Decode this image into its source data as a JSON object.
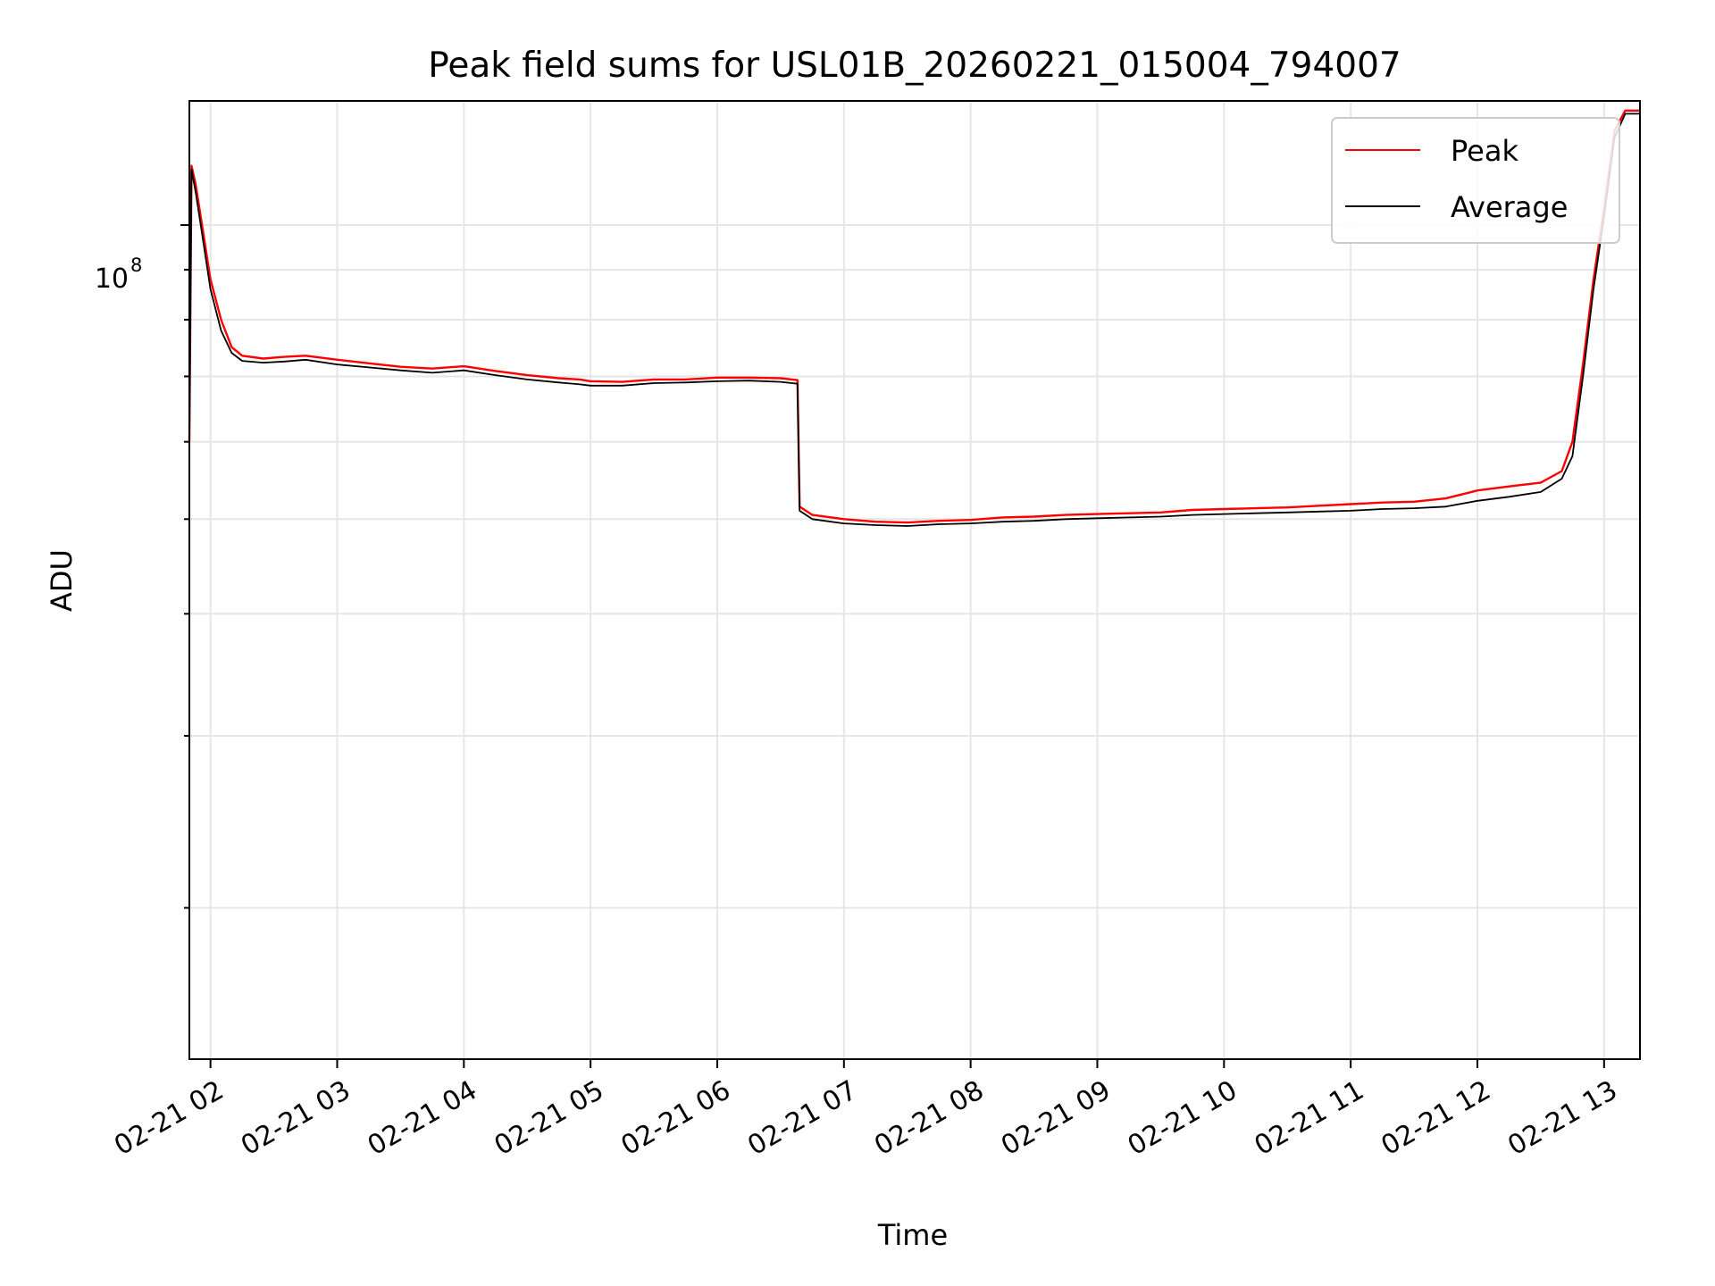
{
  "chart_data": {
    "type": "line",
    "title": "Peak field sums for USL01B_20260221_015004_794007",
    "xlabel": "Time",
    "ylabel": "ADU",
    "xscale": "time",
    "yscale": "log",
    "x_ticks": [
      "02-21 02",
      "02-21 03",
      "02-21 04",
      "02-21 05",
      "02-21 06",
      "02-21 07",
      "02-21 08",
      "02-21 09",
      "02-21 10",
      "02-21 11",
      "02-21 12",
      "02-21 13"
    ],
    "y_tick_label": "10^8",
    "xlim": [
      "2026-02-21 01:50",
      "2026-02-21 13:17"
    ],
    "ylim": [
      14000000,
      134000000
    ],
    "grid": true,
    "legend_position": "top-right",
    "series": [
      {
        "name": "Peak",
        "color": "#ff0000",
        "x": [
          "01:50",
          "01:51",
          "01:53",
          "01:56",
          "02:00",
          "02:05",
          "02:10",
          "02:15",
          "02:25",
          "02:35",
          "02:45",
          "03:00",
          "03:15",
          "03:30",
          "03:45",
          "04:00",
          "04:15",
          "04:30",
          "04:45",
          "04:55",
          "05:00",
          "05:15",
          "05:30",
          "05:45",
          "06:00",
          "06:15",
          "06:30",
          "06:38",
          "06:39",
          "06:45",
          "07:00",
          "07:15",
          "07:30",
          "07:45",
          "08:00",
          "08:15",
          "08:30",
          "08:45",
          "09:00",
          "09:15",
          "09:30",
          "09:45",
          "10:00",
          "10:15",
          "10:30",
          "10:45",
          "11:00",
          "11:15",
          "11:30",
          "11:45",
          "12:00",
          "12:15",
          "12:30",
          "12:40",
          "12:45",
          "12:50",
          "12:55",
          "13:00",
          "13:05",
          "13:10",
          "13:15",
          "13:17"
        ],
        "values": [
          60000000,
          115000000,
          110000000,
          100000000,
          88000000,
          80000000,
          75000000,
          73500000,
          73000000,
          73300000,
          73500000,
          72800000,
          72200000,
          71600000,
          71300000,
          71700000,
          70900000,
          70200000,
          69700000,
          69500000,
          69200000,
          69100000,
          69500000,
          69500000,
          69800000,
          69800000,
          69700000,
          69400000,
          51500000,
          50500000,
          50000000,
          49700000,
          49600000,
          49800000,
          49900000,
          50200000,
          50300000,
          50500000,
          50600000,
          50700000,
          50800000,
          51100000,
          51200000,
          51300000,
          51400000,
          51600000,
          51800000,
          52000000,
          52100000,
          52500000,
          53500000,
          54000000,
          54500000,
          56000000,
          60000000,
          72000000,
          88000000,
          104000000,
          125000000,
          131000000,
          131000000,
          131000000
        ]
      },
      {
        "name": "Average",
        "color": "#000000",
        "x": [
          "01:50",
          "01:51",
          "01:53",
          "01:56",
          "02:00",
          "02:05",
          "02:10",
          "02:15",
          "02:25",
          "02:35",
          "02:45",
          "03:00",
          "03:15",
          "03:30",
          "03:45",
          "04:00",
          "04:15",
          "04:30",
          "04:45",
          "04:55",
          "05:00",
          "05:15",
          "05:30",
          "05:45",
          "06:00",
          "06:15",
          "06:30",
          "06:38",
          "06:39",
          "06:45",
          "07:00",
          "07:15",
          "07:30",
          "07:45",
          "08:00",
          "08:15",
          "08:30",
          "08:45",
          "09:00",
          "09:15",
          "09:30",
          "09:45",
          "10:00",
          "10:15",
          "10:30",
          "10:45",
          "11:00",
          "11:15",
          "11:30",
          "11:45",
          "12:00",
          "12:15",
          "12:30",
          "12:40",
          "12:45",
          "12:50",
          "12:55",
          "13:00",
          "13:05",
          "13:10",
          "13:15",
          "13:17"
        ],
        "values": [
          60000000,
          114000000,
          108000000,
          98000000,
          86000000,
          78000000,
          74000000,
          72600000,
          72300000,
          72500000,
          72800000,
          72000000,
          71500000,
          71000000,
          70600000,
          71000000,
          70200000,
          69500000,
          69000000,
          68700000,
          68500000,
          68500000,
          68900000,
          69000000,
          69200000,
          69300000,
          69100000,
          68800000,
          51000000,
          50000000,
          49500000,
          49300000,
          49200000,
          49400000,
          49500000,
          49700000,
          49800000,
          50000000,
          50100000,
          50200000,
          50300000,
          50500000,
          50600000,
          50700000,
          50800000,
          50900000,
          51000000,
          51200000,
          51300000,
          51500000,
          52200000,
          52700000,
          53300000,
          55000000,
          58000000,
          70000000,
          86000000,
          102000000,
          123000000,
          130000000,
          130000000,
          130000000
        ]
      }
    ]
  }
}
